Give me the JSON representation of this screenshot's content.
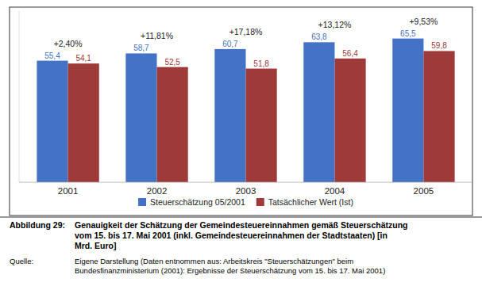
{
  "chart_data": {
    "type": "bar",
    "categories": [
      "2001",
      "2002",
      "2003",
      "2004",
      "2005"
    ],
    "series": [
      {
        "name": "Steuerschätzung 05/2001",
        "color": "#4472C4",
        "values": [
          55.4,
          58.7,
          60.7,
          63.8,
          65.5
        ],
        "value_labels": [
          "55,4",
          "58,7",
          "60,7",
          "63,8",
          "65,5"
        ]
      },
      {
        "name": "Tatsächlicher Wert (Ist)",
        "color": "#9E3A3A",
        "values": [
          54.1,
          52.5,
          51.8,
          56.4,
          59.8
        ],
        "value_labels": [
          "54,1",
          "52,5",
          "51,8",
          "56,4",
          "59,8"
        ]
      }
    ],
    "annotations": [
      "+2,40%",
      "+11,81%",
      "+17,18%",
      "+13,12%",
      "+9,53%"
    ],
    "ylim": [
      0,
      78
    ],
    "grid": false,
    "legend": "bottom",
    "data_labels": true,
    "tick_labels": "x",
    "caption_label": "Abbildung 29:",
    "caption": "Genauigkeit der Schätzung der Gemeindesteuereinnahmen gemäß Steuerschätzung\nvom 15. bis 17. Mai 2001 (inkl. Gemeindesteuereinnahmen der Stadtstaaten) [in\nMrd. Euro]",
    "source_label": "Quelle:",
    "source": "Eigene Darstellung (Daten entnommen aus: Arbeitskreis \"Steuerschätzungen\" beim\nBundesfinanzministerium (2001): Ergebnisse der Steuerschätzung vom 15. bis 17. Mai 2001)"
  }
}
